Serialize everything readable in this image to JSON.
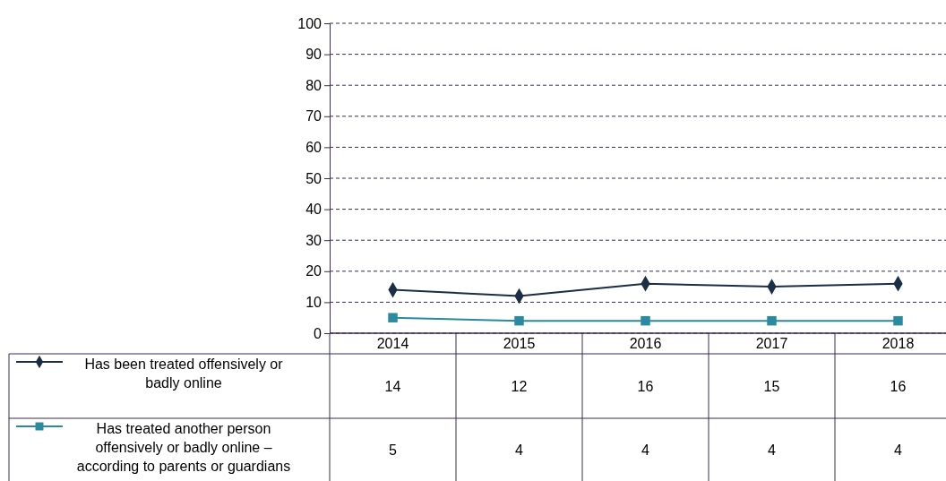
{
  "chart_data": {
    "type": "line",
    "categories": [
      "2014",
      "2015",
      "2016",
      "2017",
      "2018"
    ],
    "series": [
      {
        "name": "Has been treated offensively or badly online",
        "color": "#1a2e45",
        "marker": "diamond",
        "values": [
          14,
          12,
          16,
          15,
          16
        ]
      },
      {
        "name": "Has treated another person offensively or badly online – according to parents or guardians",
        "color": "#2a8aa0",
        "marker": "square",
        "values": [
          5,
          4,
          4,
          4,
          4
        ]
      }
    ],
    "ylim": [
      0,
      100
    ],
    "yticks": [
      0,
      10,
      20,
      30,
      40,
      50,
      60,
      70,
      80,
      90,
      100
    ],
    "grid": "y",
    "legend": "bottom",
    "data_labels": true
  }
}
